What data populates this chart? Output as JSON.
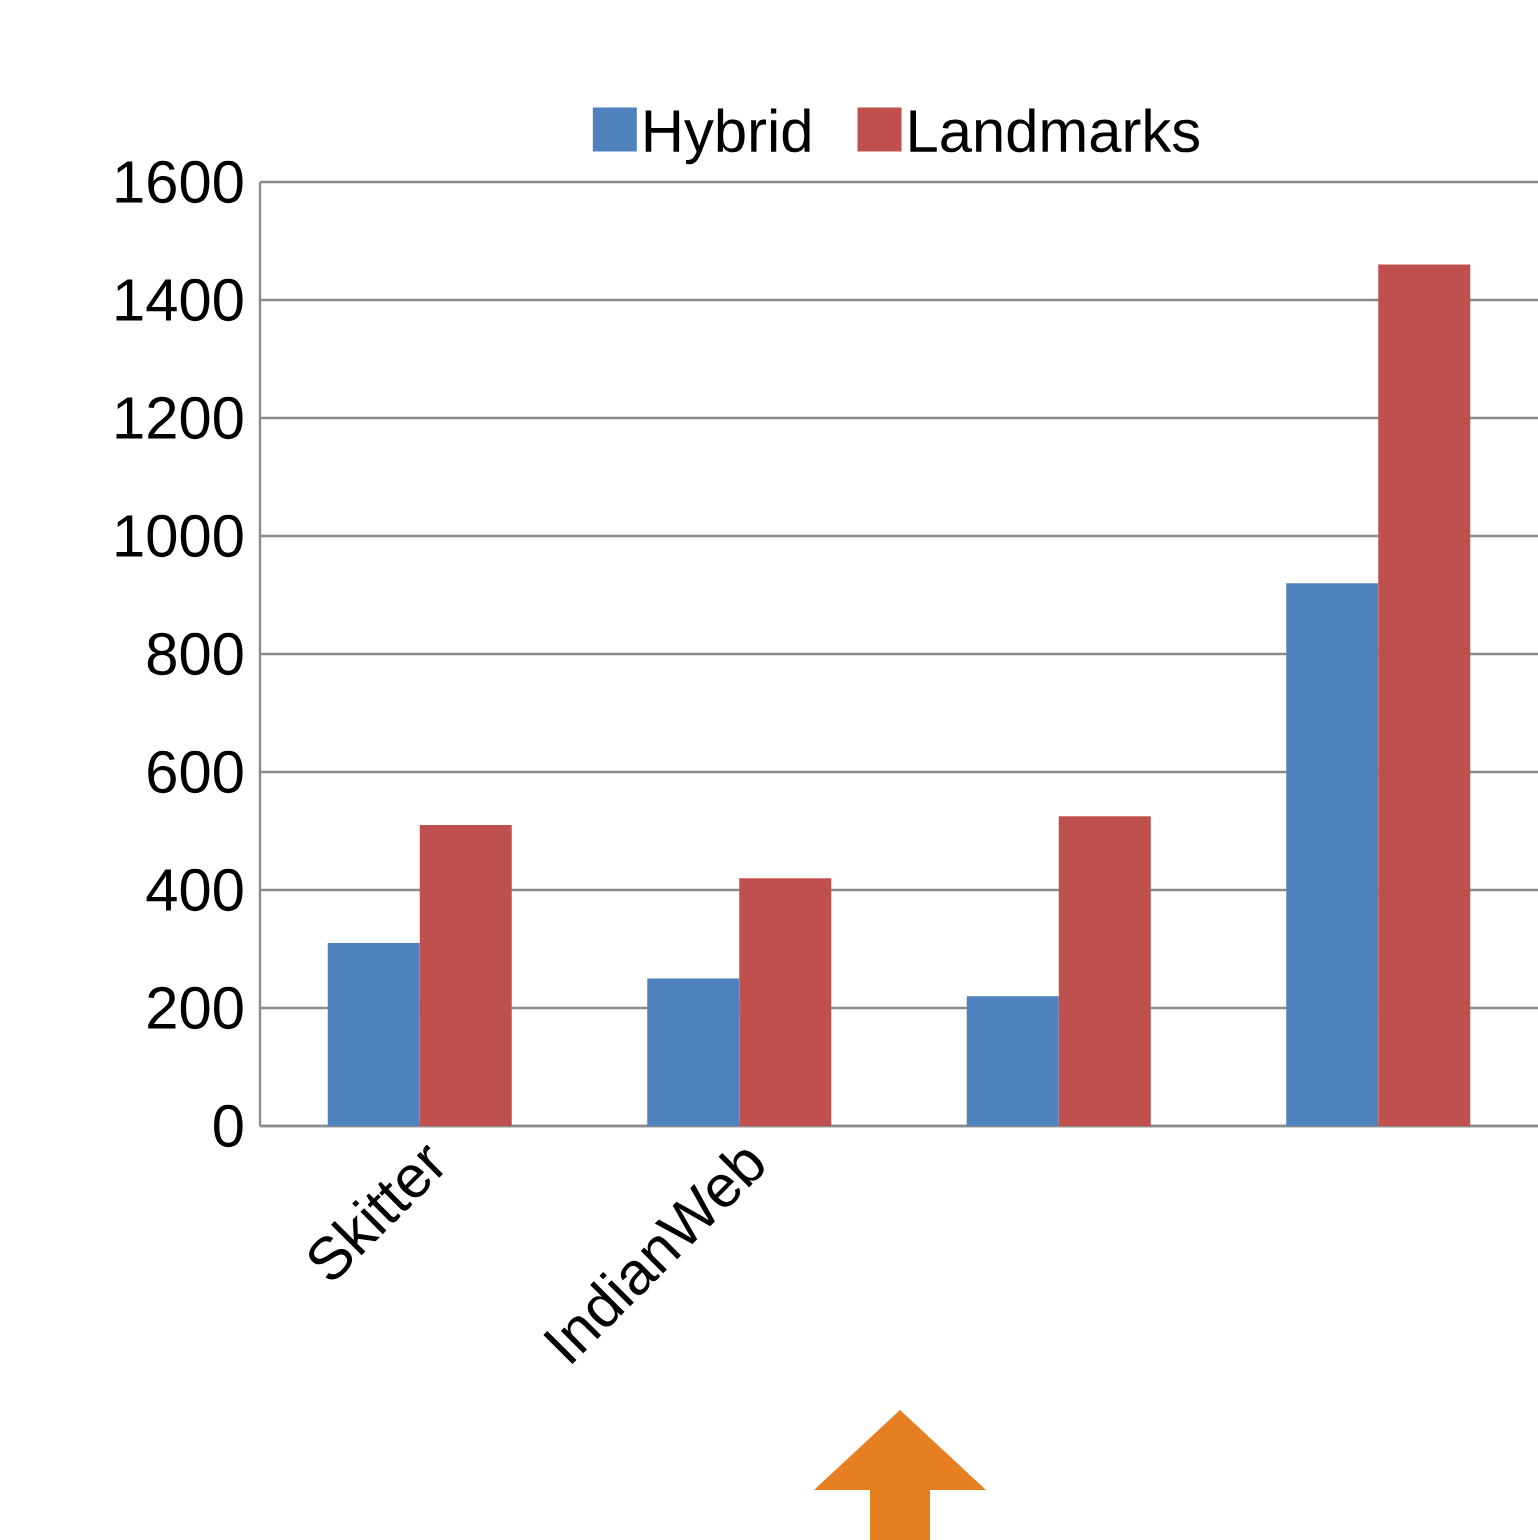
{
  "chart_data": {
    "type": "bar",
    "categories": [
      "Skitter",
      "IndianWeb",
      null,
      null
    ],
    "series": [
      {
        "name": "Hybrid",
        "color": "#4f81bd",
        "values": [
          310,
          250,
          220,
          920
        ]
      },
      {
        "name": "Landmarks",
        "color": "#c0504d",
        "values": [
          510,
          420,
          525,
          1460
        ]
      }
    ],
    "ylim": [
      0,
      1600
    ],
    "yticks": [
      0,
      200,
      400,
      600,
      800,
      1000,
      1200,
      1400,
      1600
    ],
    "grid": "y",
    "legend": "top"
  }
}
